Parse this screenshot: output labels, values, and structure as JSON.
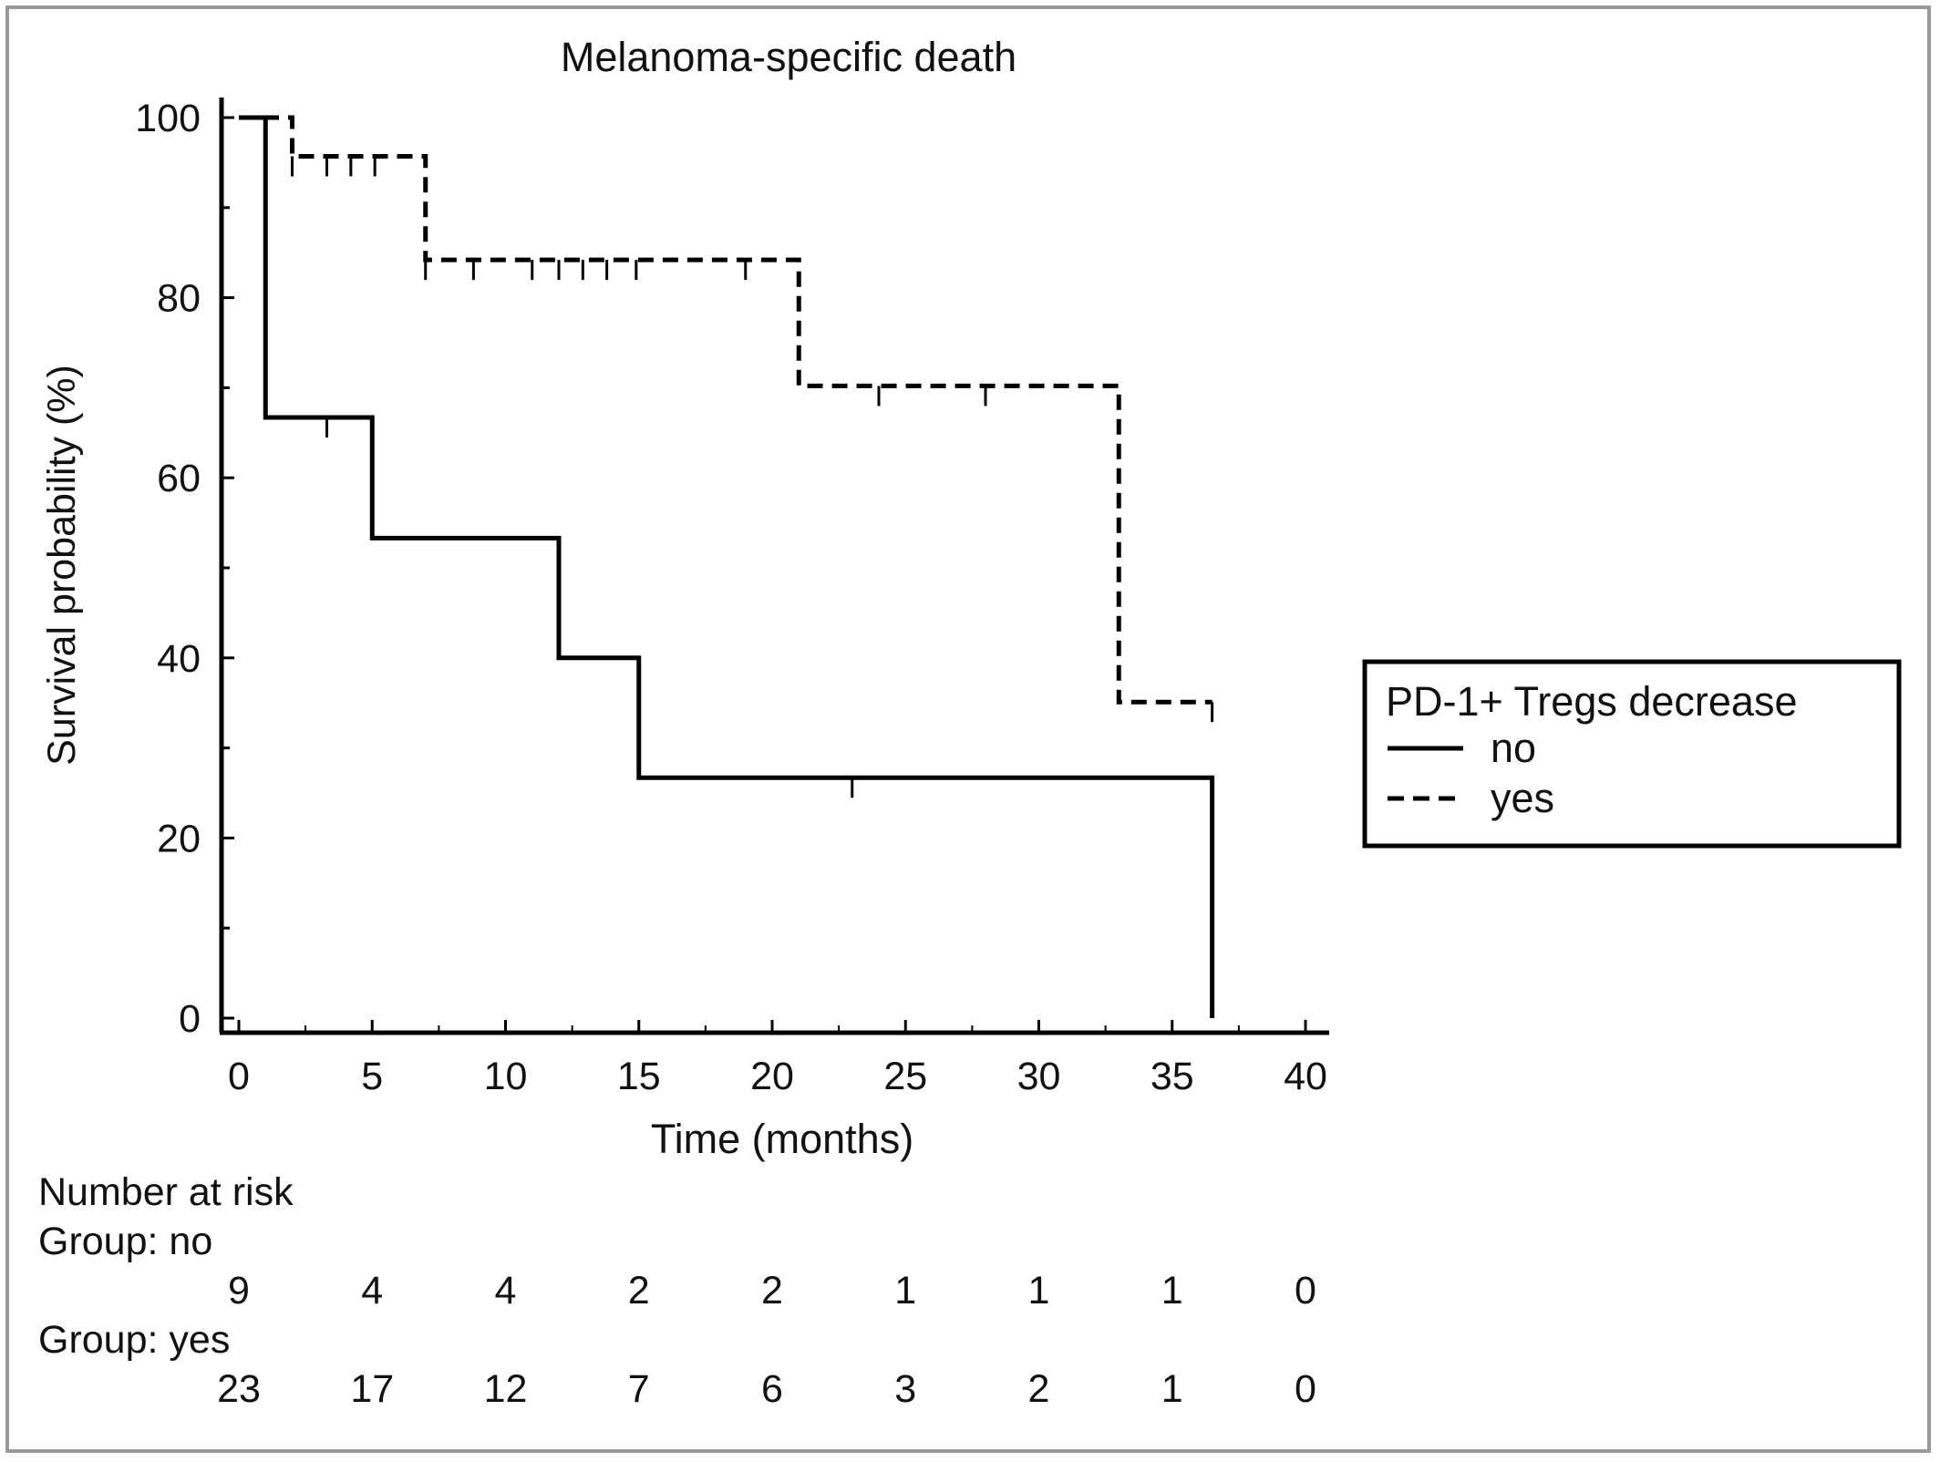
{
  "chart_data": {
    "type": "line",
    "subtype": "kaplan-meier",
    "title": "Melanoma-specific death",
    "xlabel": "Time (months)",
    "ylabel": "Survival probability (%)",
    "xlim": [
      0,
      40
    ],
    "ylim": [
      0,
      100
    ],
    "x_ticks": [
      "0",
      "5",
      "10",
      "15",
      "20",
      "25",
      "30",
      "35",
      "40"
    ],
    "y_ticks": [
      "0",
      "20",
      "40",
      "60",
      "80",
      "100"
    ],
    "grid": false,
    "legend": {
      "title": "PD-1+ Tregs decrease",
      "position": "right",
      "entries": [
        {
          "name": "no",
          "style": "solid"
        },
        {
          "name": "yes",
          "style": "dashed"
        }
      ]
    },
    "series": [
      {
        "name": "no",
        "style": "solid",
        "steps": [
          [
            0,
            100
          ],
          [
            1,
            66.7
          ],
          [
            5,
            53.3
          ],
          [
            12,
            40
          ],
          [
            15,
            26.7
          ],
          [
            36.5,
            0
          ]
        ],
        "end_x": 36.5,
        "censored": [
          [
            3.3,
            66.7
          ],
          [
            23,
            26.7
          ]
        ]
      },
      {
        "name": "yes",
        "style": "dashed",
        "steps": [
          [
            0,
            100
          ],
          [
            2,
            95.7
          ],
          [
            7,
            84.2
          ],
          [
            21,
            70.2
          ],
          [
            33,
            35.1
          ]
        ],
        "end_x": 36.5,
        "censored": [
          [
            2,
            95.7
          ],
          [
            3.3,
            95.7
          ],
          [
            4.2,
            95.7
          ],
          [
            5.1,
            95.7
          ],
          [
            7,
            84.2
          ],
          [
            8.8,
            84.2
          ],
          [
            11,
            84.2
          ],
          [
            12,
            84.2
          ],
          [
            12.9,
            84.2
          ],
          [
            13.8,
            84.2
          ],
          [
            14.9,
            84.2
          ],
          [
            19,
            84.2
          ],
          [
            24,
            70.2
          ],
          [
            28,
            70.2
          ],
          [
            36.5,
            35.1
          ]
        ]
      }
    ],
    "risk_table": {
      "title": "Number at risk",
      "times": [
        0,
        5,
        10,
        15,
        20,
        25,
        30,
        35,
        40
      ],
      "groups": [
        {
          "label": "Group: no",
          "counts": [
            "9",
            "4",
            "4",
            "2",
            "2",
            "1",
            "1",
            "1",
            "0"
          ]
        },
        {
          "label": "Group: yes",
          "counts": [
            "23",
            "17",
            "12",
            "7",
            "6",
            "3",
            "2",
            "1",
            "0"
          ]
        }
      ]
    }
  }
}
